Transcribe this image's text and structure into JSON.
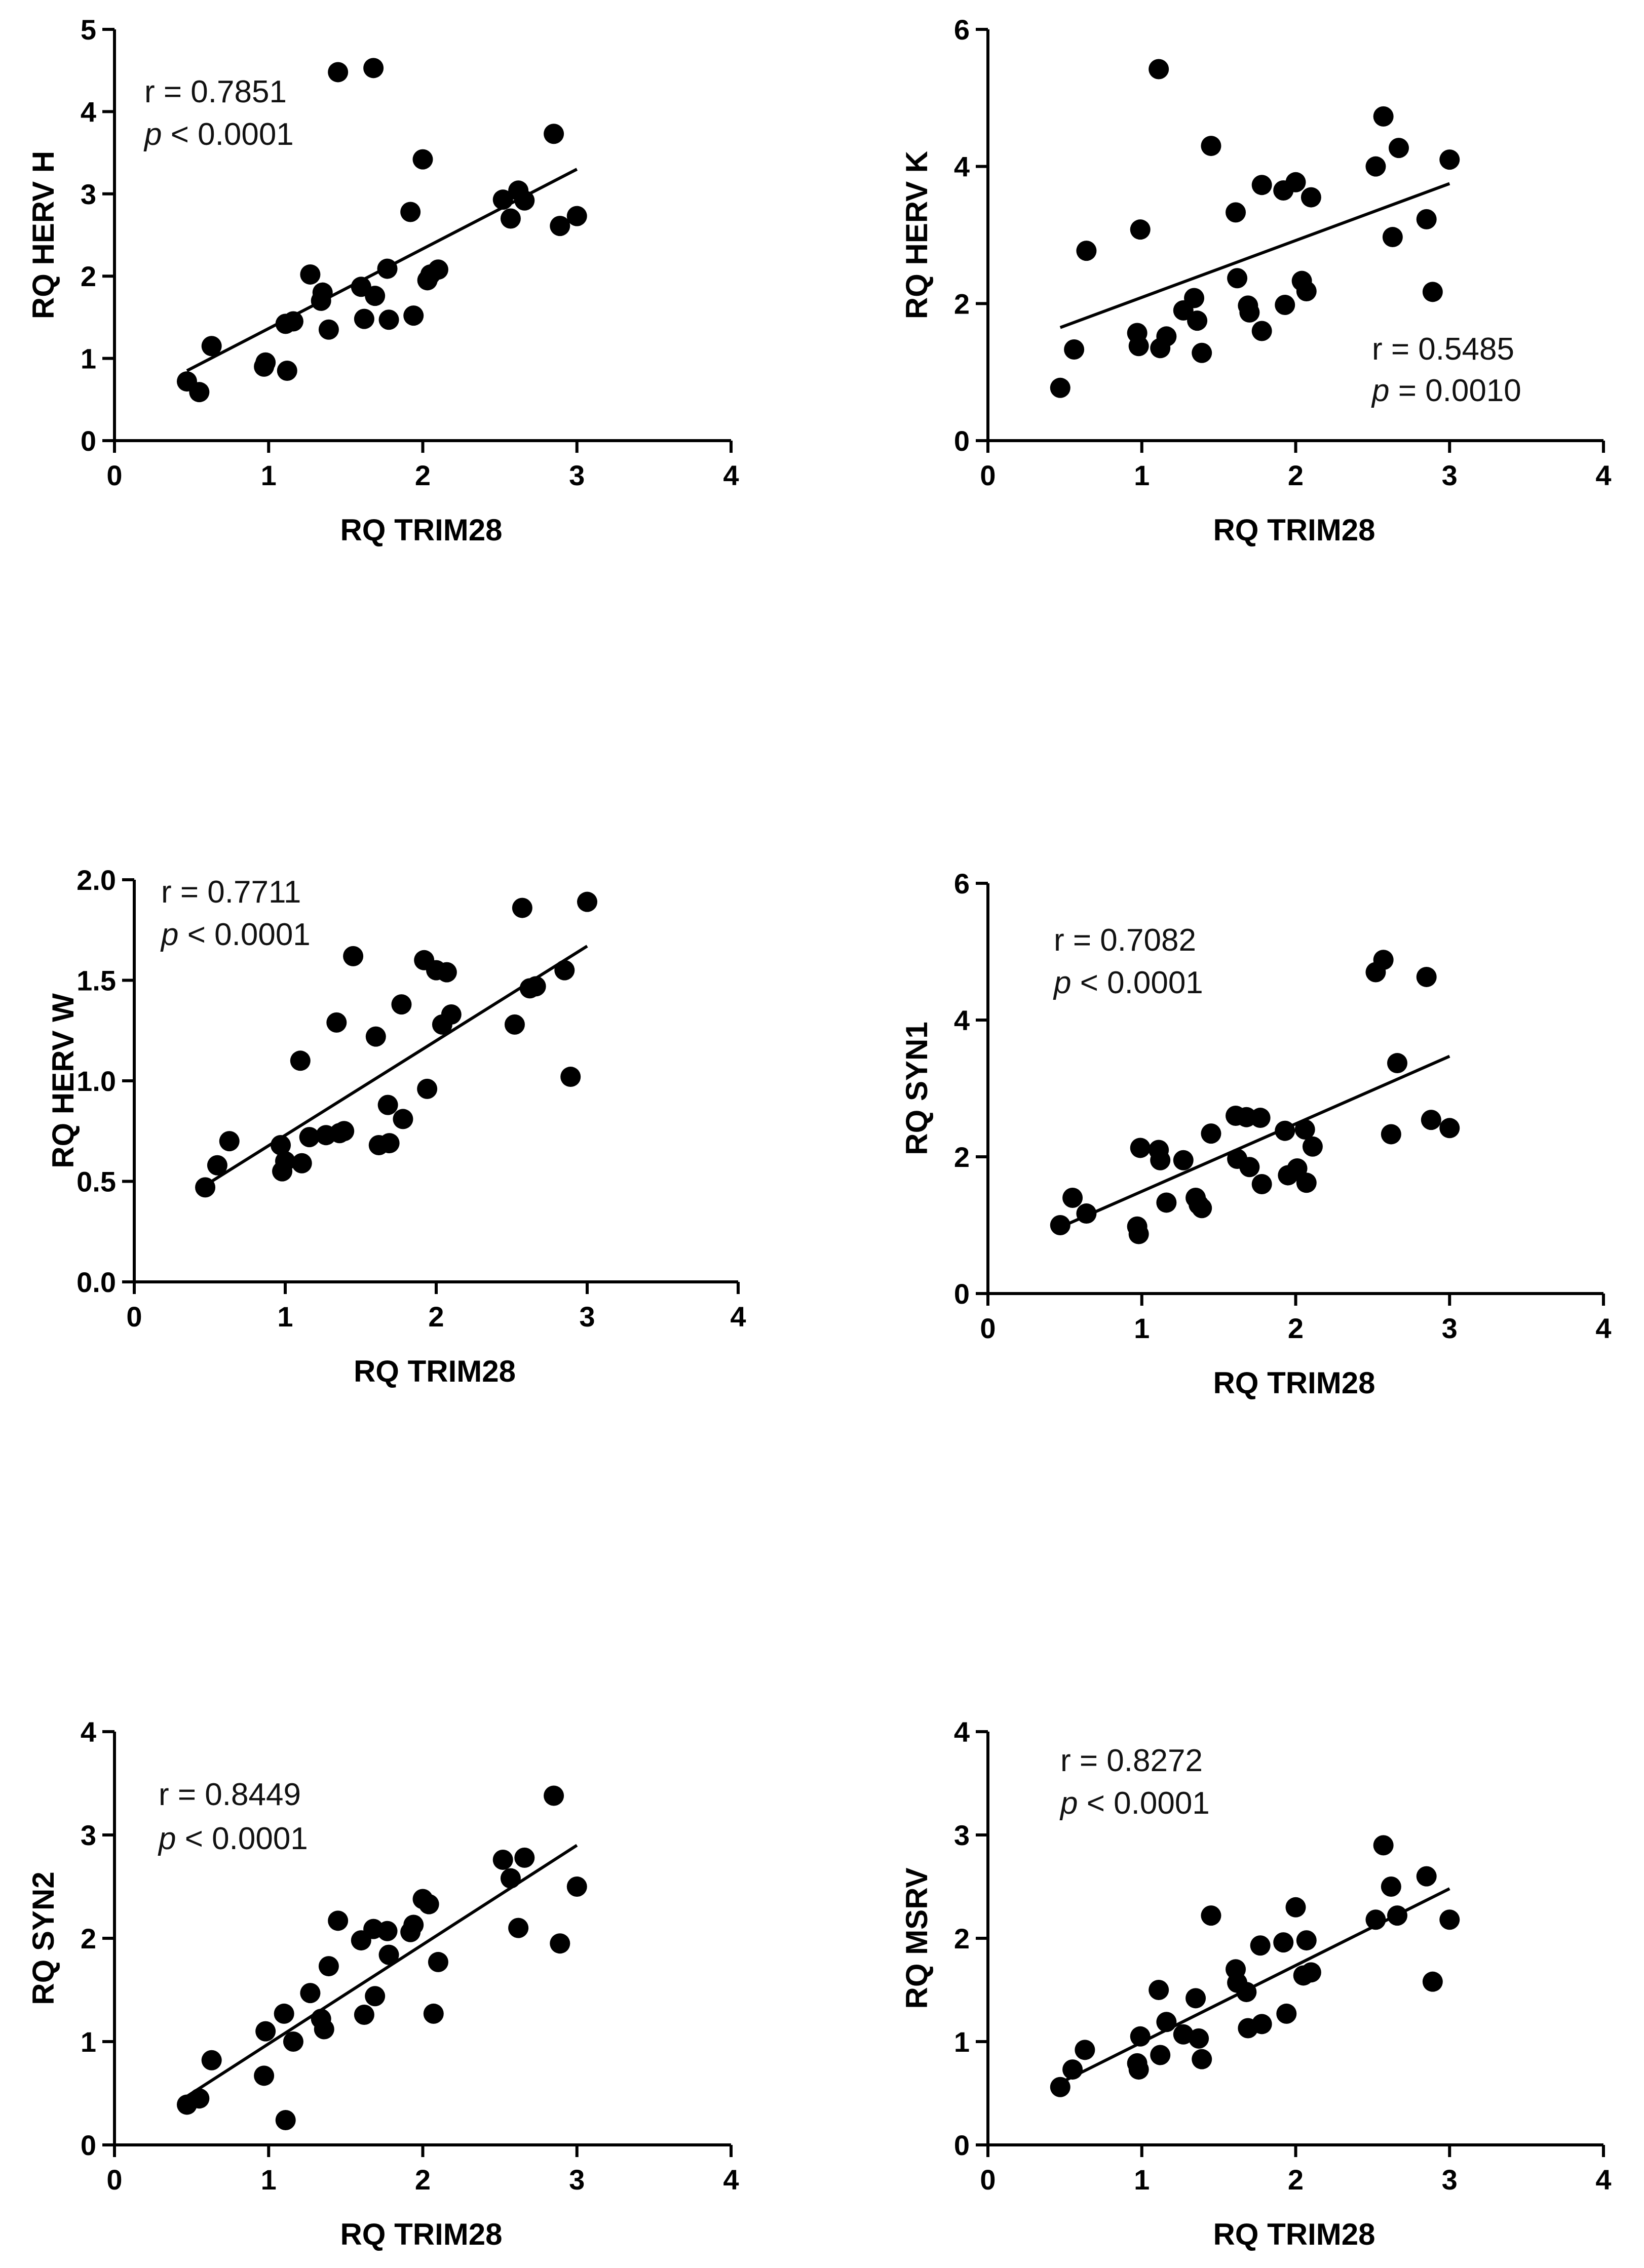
{
  "chart_data": [
    {
      "type": "scatter",
      "title": "",
      "xlabel": "RQ TRIM28",
      "ylabel": "RQ HERV H",
      "xlim": [
        0,
        4
      ],
      "ylim": [
        0,
        5
      ],
      "x_ticks": [
        "0",
        "1",
        "2",
        "3",
        "4"
      ],
      "y_ticks": [
        "0",
        "1",
        "2",
        "3",
        "4",
        "5"
      ],
      "stats": {
        "r_text": "r = 0.7851",
        "p_symbol": "p",
        "p_rest": " < 0.0001"
      },
      "fit_line": {
        "x": [
          0.47,
          3.0
        ],
        "y": [
          0.85,
          3.3
        ]
      },
      "points": [
        [
          0.47,
          0.72
        ],
        [
          0.55,
          0.59
        ],
        [
          0.63,
          1.15
        ],
        [
          0.97,
          0.9
        ],
        [
          0.98,
          0.95
        ],
        [
          1.11,
          1.42
        ],
        [
          1.12,
          0.85
        ],
        [
          1.16,
          1.45
        ],
        [
          1.27,
          2.02
        ],
        [
          1.34,
          1.7
        ],
        [
          1.35,
          1.8
        ],
        [
          1.39,
          1.35
        ],
        [
          1.45,
          4.48
        ],
        [
          1.6,
          1.87
        ],
        [
          1.62,
          1.48
        ],
        [
          1.68,
          4.53
        ],
        [
          1.69,
          1.76
        ],
        [
          1.77,
          2.09
        ],
        [
          1.78,
          1.47
        ],
        [
          1.92,
          2.78
        ],
        [
          1.94,
          1.52
        ],
        [
          2.0,
          3.42
        ],
        [
          2.03,
          1.95
        ],
        [
          2.05,
          2.02
        ],
        [
          2.1,
          2.08
        ],
        [
          2.52,
          2.93
        ],
        [
          2.57,
          2.7
        ],
        [
          2.62,
          3.04
        ],
        [
          2.66,
          2.92
        ],
        [
          2.85,
          3.73
        ],
        [
          2.89,
          2.61
        ],
        [
          3.0,
          2.73
        ]
      ]
    },
    {
      "type": "scatter",
      "title": "",
      "xlabel": "RQ TRIM28",
      "ylabel": "RQ HERV K",
      "xlim": [
        0,
        4
      ],
      "ylim": [
        0,
        6
      ],
      "x_ticks": [
        "0",
        "1",
        "2",
        "3",
        "4"
      ],
      "y_ticks": [
        "0",
        "2",
        "4",
        "6"
      ],
      "stats": {
        "r_text": "r = 0.5485",
        "p_symbol": "p",
        "p_rest": " = 0.0010"
      },
      "fit_line": {
        "x": [
          0.47,
          3.0
        ],
        "y": [
          1.65,
          3.75
        ]
      },
      "points": [
        [
          0.47,
          0.77
        ],
        [
          0.56,
          1.33
        ],
        [
          0.64,
          2.77
        ],
        [
          0.97,
          1.57
        ],
        [
          0.98,
          1.38
        ],
        [
          0.99,
          3.08
        ],
        [
          1.11,
          5.42
        ],
        [
          1.12,
          1.35
        ],
        [
          1.16,
          1.52
        ],
        [
          1.27,
          1.9
        ],
        [
          1.34,
          2.08
        ],
        [
          1.36,
          1.75
        ],
        [
          1.39,
          1.28
        ],
        [
          1.45,
          4.3
        ],
        [
          1.61,
          3.33
        ],
        [
          1.62,
          2.37
        ],
        [
          1.69,
          1.97
        ],
        [
          1.7,
          1.87
        ],
        [
          1.78,
          3.73
        ],
        [
          1.78,
          1.6
        ],
        [
          1.92,
          3.65
        ],
        [
          1.93,
          1.98
        ],
        [
          2.0,
          3.77
        ],
        [
          2.04,
          2.33
        ],
        [
          2.07,
          2.18
        ],
        [
          2.1,
          3.55
        ],
        [
          2.52,
          4.0
        ],
        [
          2.57,
          4.73
        ],
        [
          2.63,
          2.97
        ],
        [
          2.67,
          4.27
        ],
        [
          2.85,
          3.23
        ],
        [
          2.89,
          2.17
        ],
        [
          3.0,
          4.1
        ]
      ]
    },
    {
      "type": "scatter",
      "title": "",
      "xlabel": "RQ TRIM28",
      "ylabel": "RQ HERV W",
      "xlim": [
        0,
        4
      ],
      "ylim": [
        0,
        2
      ],
      "x_ticks": [
        "0",
        "1",
        "2",
        "3",
        "4"
      ],
      "y_ticks": [
        "0.0",
        "0.5",
        "1.0",
        "1.5",
        "2.0"
      ],
      "stats": {
        "r_text": "r = 0.7711",
        "p_symbol": "p",
        "p_rest": " < 0.0001"
      },
      "fit_line": {
        "x": [
          0.47,
          3.0
        ],
        "y": [
          0.48,
          1.67
        ]
      },
      "points": [
        [
          0.47,
          0.47
        ],
        [
          0.55,
          0.58
        ],
        [
          0.63,
          0.7
        ],
        [
          0.97,
          0.68
        ],
        [
          0.98,
          0.55
        ],
        [
          1.0,
          0.6
        ],
        [
          1.1,
          1.1
        ],
        [
          1.11,
          0.59
        ],
        [
          1.16,
          0.72
        ],
        [
          1.27,
          0.73
        ],
        [
          1.34,
          1.29
        ],
        [
          1.36,
          0.74
        ],
        [
          1.39,
          0.75
        ],
        [
          1.45,
          1.62
        ],
        [
          1.6,
          1.22
        ],
        [
          1.62,
          0.68
        ],
        [
          1.68,
          0.88
        ],
        [
          1.69,
          0.69
        ],
        [
          1.77,
          1.38
        ],
        [
          1.78,
          0.81
        ],
        [
          1.92,
          1.6
        ],
        [
          1.94,
          0.96
        ],
        [
          2.0,
          1.55
        ],
        [
          2.04,
          1.28
        ],
        [
          2.07,
          1.54
        ],
        [
          2.1,
          1.33
        ],
        [
          2.52,
          1.28
        ],
        [
          2.57,
          1.86
        ],
        [
          2.62,
          1.46
        ],
        [
          2.66,
          1.47
        ],
        [
          2.85,
          1.55
        ],
        [
          2.89,
          1.02
        ],
        [
          3.0,
          1.89
        ]
      ]
    },
    {
      "type": "scatter",
      "title": "",
      "xlabel": "RQ TRIM28",
      "ylabel": "RQ SYN1",
      "xlim": [
        0,
        4
      ],
      "ylim": [
        0,
        6
      ],
      "x_ticks": [
        "0",
        "1",
        "2",
        "3",
        "4"
      ],
      "y_ticks": [
        "0",
        "2",
        "4",
        "6"
      ],
      "stats": {
        "r_text": "r = 0.7082",
        "p_symbol": "p",
        "p_rest": " < 0.0001"
      },
      "fit_line": {
        "x": [
          0.47,
          3.0
        ],
        "y": [
          0.97,
          3.47
        ]
      },
      "points": [
        [
          0.47,
          1.0
        ],
        [
          0.55,
          1.4
        ],
        [
          0.64,
          1.17
        ],
        [
          0.97,
          0.98
        ],
        [
          0.98,
          0.87
        ],
        [
          0.99,
          2.13
        ],
        [
          1.11,
          2.1
        ],
        [
          1.12,
          1.95
        ],
        [
          1.16,
          1.33
        ],
        [
          1.27,
          1.95
        ],
        [
          1.35,
          1.4
        ],
        [
          1.37,
          1.3
        ],
        [
          1.39,
          1.25
        ],
        [
          1.45,
          2.34
        ],
        [
          1.61,
          2.6
        ],
        [
          1.62,
          1.97
        ],
        [
          1.68,
          2.58
        ],
        [
          1.7,
          1.85
        ],
        [
          1.77,
          2.57
        ],
        [
          1.78,
          1.6
        ],
        [
          1.93,
          2.38
        ],
        [
          1.95,
          1.73
        ],
        [
          2.01,
          1.83
        ],
        [
          2.06,
          2.4
        ],
        [
          2.07,
          1.62
        ],
        [
          2.11,
          2.15
        ],
        [
          2.52,
          4.7
        ],
        [
          2.57,
          4.88
        ],
        [
          2.62,
          2.33
        ],
        [
          2.66,
          3.37
        ],
        [
          2.85,
          4.63
        ],
        [
          2.88,
          2.54
        ],
        [
          3.0,
          2.42
        ]
      ]
    },
    {
      "type": "scatter",
      "title": "",
      "xlabel": "RQ TRIM28",
      "ylabel": "RQ SYN2",
      "xlim": [
        0,
        4
      ],
      "ylim": [
        0,
        4
      ],
      "x_ticks": [
        "0",
        "1",
        "2",
        "3",
        "4"
      ],
      "y_ticks": [
        "0",
        "1",
        "2",
        "3",
        "4"
      ],
      "stats": {
        "r_text": "r = 0.8449",
        "p_symbol": "p",
        "p_rest": " < 0.0001"
      },
      "fit_line": {
        "x": [
          0.47,
          3.0
        ],
        "y": [
          0.47,
          2.9
        ]
      },
      "points": [
        [
          0.47,
          0.39
        ],
        [
          0.55,
          0.45
        ],
        [
          0.63,
          0.82
        ],
        [
          0.97,
          0.67
        ],
        [
          0.98,
          1.1
        ],
        [
          1.1,
          1.27
        ],
        [
          1.11,
          0.24
        ],
        [
          1.16,
          1.0
        ],
        [
          1.27,
          1.47
        ],
        [
          1.34,
          1.22
        ],
        [
          1.36,
          1.12
        ],
        [
          1.39,
          1.73
        ],
        [
          1.45,
          2.17
        ],
        [
          1.6,
          1.98
        ],
        [
          1.62,
          1.26
        ],
        [
          1.68,
          2.09
        ],
        [
          1.69,
          1.44
        ],
        [
          1.77,
          2.07
        ],
        [
          1.78,
          1.84
        ],
        [
          1.92,
          2.06
        ],
        [
          1.94,
          2.13
        ],
        [
          2.0,
          2.38
        ],
        [
          2.04,
          2.33
        ],
        [
          2.07,
          1.27
        ],
        [
          2.1,
          1.77
        ],
        [
          2.52,
          2.76
        ],
        [
          2.57,
          2.58
        ],
        [
          2.62,
          2.1
        ],
        [
          2.66,
          2.78
        ],
        [
          2.85,
          3.38
        ],
        [
          2.89,
          1.95
        ],
        [
          3.0,
          2.5
        ]
      ]
    },
    {
      "type": "scatter",
      "title": "",
      "xlabel": "RQ TRIM28",
      "ylabel": "RQ MSRV",
      "xlim": [
        0,
        4
      ],
      "ylim": [
        0,
        4
      ],
      "x_ticks": [
        "0",
        "1",
        "2",
        "3",
        "4"
      ],
      "y_ticks": [
        "0",
        "1",
        "2",
        "3",
        "4"
      ],
      "stats": {
        "r_text": "r = 0.8272",
        "p_symbol": "p",
        "p_rest": " < 0.0001"
      },
      "fit_line": {
        "x": [
          0.47,
          3.0
        ],
        "y": [
          0.6,
          2.48
        ]
      },
      "points": [
        [
          0.47,
          0.56
        ],
        [
          0.55,
          0.73
        ],
        [
          0.63,
          0.92
        ],
        [
          0.97,
          0.79
        ],
        [
          0.98,
          0.73
        ],
        [
          0.99,
          1.05
        ],
        [
          1.11,
          1.5
        ],
        [
          1.12,
          0.87
        ],
        [
          1.16,
          1.19
        ],
        [
          1.27,
          1.07
        ],
        [
          1.35,
          1.42
        ],
        [
          1.37,
          1.03
        ],
        [
          1.39,
          0.83
        ],
        [
          1.45,
          2.22
        ],
        [
          1.61,
          1.7
        ],
        [
          1.62,
          1.57
        ],
        [
          1.68,
          1.48
        ],
        [
          1.69,
          1.13
        ],
        [
          1.77,
          1.93
        ],
        [
          1.78,
          1.17
        ],
        [
          1.92,
          1.96
        ],
        [
          1.94,
          1.27
        ],
        [
          2.0,
          2.3
        ],
        [
          2.05,
          1.64
        ],
        [
          2.07,
          1.98
        ],
        [
          2.1,
          1.67
        ],
        [
          2.52,
          2.18
        ],
        [
          2.57,
          2.9
        ],
        [
          2.62,
          2.5
        ],
        [
          2.66,
          2.22
        ],
        [
          2.85,
          2.6
        ],
        [
          2.89,
          1.58
        ],
        [
          3.0,
          2.18
        ]
      ]
    }
  ]
}
